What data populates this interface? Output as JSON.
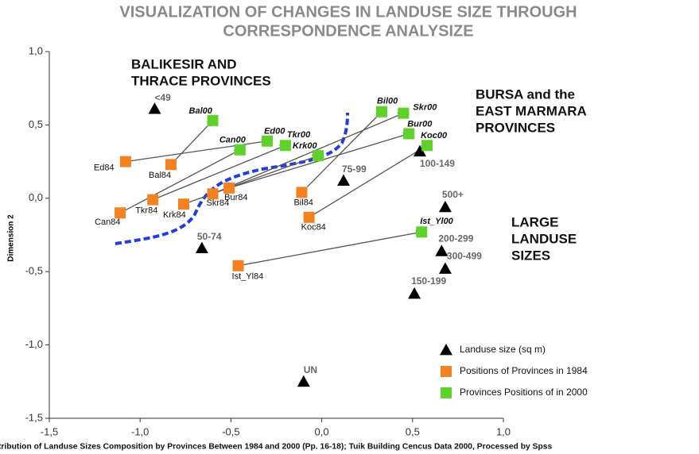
{
  "chart_data": {
    "type": "scatter",
    "title": [
      "VISUALIZATION OF CHANGES IN LANDUSE SIZE THROUGH",
      "CORRESPONDENCE ANALYSIZE"
    ],
    "y_label": "Dimension 2",
    "caption": "tribution of Landuse Sizes Composition by Provinces Between 1984 and 2000 (Pp. 16-18); Tuik Building Cencus Data 2000, Processed by Spss",
    "annotations": [
      [
        "BALIKESIR AND",
        "THRACE PROVINCES"
      ],
      [
        "BURSA  and the",
        "EAST MARMARA",
        "PROVINCES"
      ],
      [
        "LARGE",
        "LANDUSE",
        "SIZES"
      ]
    ],
    "xlim": [
      -1.5,
      1.0
    ],
    "ylim": [
      -1.5,
      1.0
    ],
    "xticks": [
      {
        "value": -1.5,
        "label": "-1,5"
      },
      {
        "value": -1.0,
        "label": "-1,0"
      },
      {
        "value": -0.5,
        "label": "-0,5"
      },
      {
        "value": 0,
        "label": "0,0"
      },
      {
        "value": 0.5,
        "label": "0,5"
      },
      {
        "value": 1.0,
        "label": "1,0"
      }
    ],
    "yticks": [
      {
        "value": 1.0,
        "label": "1,0"
      },
      {
        "value": 0.5,
        "label": "0,5"
      },
      {
        "value": 0,
        "label": "0,0"
      },
      {
        "value": -0.5,
        "label": "-0,5"
      },
      {
        "value": -1.0,
        "label": "-1,0"
      },
      {
        "value": -1.5,
        "label": "-1,5"
      }
    ],
    "series": [
      {
        "name": "Landuse size (sq m)",
        "color": "#000000",
        "marker": "triangle",
        "labels": [
          "<49",
          "75-99",
          "100-149",
          "500+",
          "200-299",
          "300-499",
          "150-199",
          "50-74",
          "UN"
        ],
        "x": [
          -0.92,
          0.12,
          0.54,
          0.68,
          0.66,
          0.68,
          0.51,
          -0.66,
          -0.1
        ],
        "values": [
          0.61,
          0.12,
          0.32,
          -0.06,
          -0.36,
          -0.48,
          -0.65,
          -0.34,
          -1.25
        ]
      },
      {
        "name": "Positions of Provinces in 1984",
        "color": "#f58220",
        "marker": "square",
        "labels": [
          "Bal84",
          "Can84",
          "Ed84",
          "Tkr84",
          "Krk84",
          "Skr84",
          "Bur84",
          "Bil84",
          "Koc84",
          "Ist_Yl84"
        ],
        "x": [
          -0.83,
          -1.11,
          -1.08,
          -0.93,
          -0.76,
          -0.6,
          -0.51,
          -0.11,
          -0.07,
          -0.46
        ],
        "values": [
          0.23,
          -0.1,
          0.25,
          -0.01,
          -0.04,
          0.03,
          0.07,
          0.04,
          -0.13,
          -0.46
        ]
      },
      {
        "name": "Provinces Positions of  in 2000",
        "color": "#5fd12b",
        "marker": "square",
        "labels": [
          "Bal00",
          "Can00",
          "Ed00",
          "Tkr00",
          "Krk00",
          "Skr00",
          "Bur00",
          "Bil00",
          "Koc00",
          "Ist_Yl00"
        ],
        "x": [
          -0.6,
          -0.45,
          -0.3,
          -0.2,
          -0.02,
          0.45,
          0.48,
          0.33,
          0.58,
          0.55
        ],
        "values": [
          0.53,
          0.33,
          0.39,
          0.36,
          0.29,
          0.58,
          0.44,
          0.59,
          0.36,
          -0.23
        ]
      }
    ]
  }
}
